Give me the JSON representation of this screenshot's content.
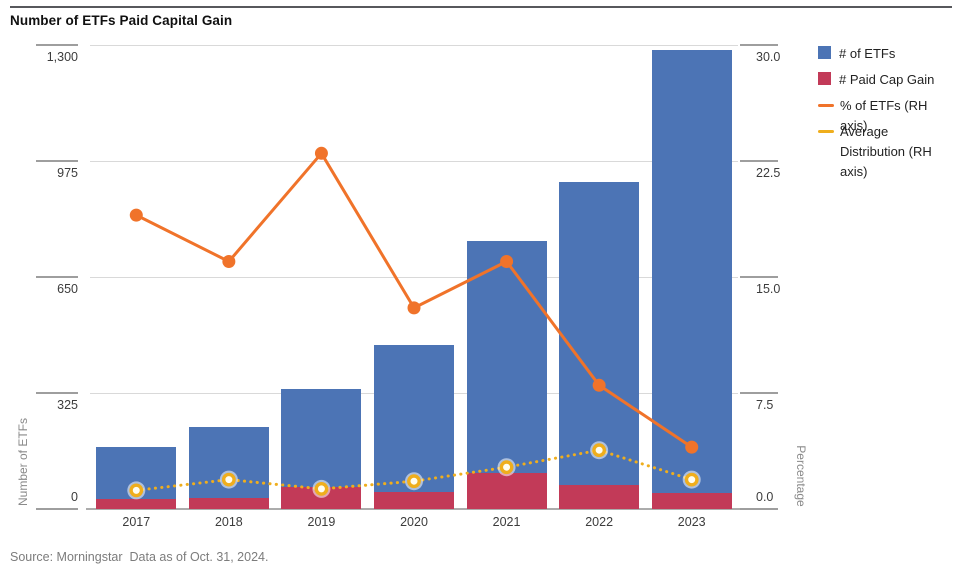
{
  "title": "Number of ETFs Paid Capital Gain",
  "source": "Source: Morningstar  Data as of Oct. 31, 2024.",
  "legend": {
    "items": [
      {
        "label": "# of ETFs",
        "swatch": "square",
        "color": "#4C74B5"
      },
      {
        "label": "# Paid Cap Gain",
        "swatch": "square",
        "color": "#C23A58"
      },
      {
        "label": "% of ETFs (RH axis)",
        "swatch": "line",
        "color": "#F0732A"
      },
      {
        "label": "Average Distribution (RH axis)",
        "swatch": "line",
        "color": "#EFAE1D"
      }
    ]
  },
  "chart_data": {
    "type": "bar",
    "subtype": "bar-line combo, dual axis",
    "categories": [
      "2017",
      "2018",
      "2019",
      "2020",
      "2021",
      "2022",
      "2023"
    ],
    "series": [
      {
        "name": "# of ETFs",
        "type": "bar",
        "axis": "left",
        "color": "#4C74B5",
        "values": [
          175,
          230,
          335,
          460,
          750,
          915,
          1285
        ]
      },
      {
        "name": "# Paid Cap Gain",
        "type": "bar",
        "axis": "left",
        "color": "#C23A58",
        "values": [
          28,
          31,
          62,
          48,
          100,
          66,
          44
        ]
      },
      {
        "name": "% of ETFs (RH axis)",
        "type": "line",
        "axis": "right",
        "color": "#F0732A",
        "values": [
          19,
          16,
          23,
          13,
          16,
          8,
          4
        ]
      },
      {
        "name": "Average Distribution (RH axis)",
        "type": "dotted-line",
        "axis": "right",
        "color": "#EFAE1D",
        "values": [
          1.2,
          1.9,
          1.3,
          1.8,
          2.7,
          3.8,
          1.9
        ]
      }
    ],
    "left_axis": {
      "title": "Number of ETFs",
      "min": 0,
      "max": 1300,
      "tick_labels": [
        "1,300",
        "975",
        "650",
        "325",
        "0"
      ],
      "tick_values": [
        1300,
        975,
        650,
        325,
        0
      ]
    },
    "right_axis": {
      "title": "Percentage",
      "min": 0,
      "max": 30,
      "tick_labels": [
        "30.0",
        "22.5",
        "15.0",
        "7.5",
        "0.0"
      ],
      "tick_values": [
        30,
        22.5,
        15,
        7.5,
        0
      ]
    },
    "grid": true,
    "legend_position": "right"
  },
  "colors": {
    "bar_blue": "#4C74B5",
    "bar_crimson": "#C23A58",
    "line_orange": "#F0732A",
    "line_yellow": "#EFAE1D",
    "gridline": "#D9D9D9",
    "axis_tick": "#9E9E9E",
    "baseline": "#ACACAC",
    "title_text": "#101010",
    "axis_text": "#3C3C3C",
    "axis_title_text": "#8A8A8A",
    "source_text": "#7C7C7C"
  }
}
